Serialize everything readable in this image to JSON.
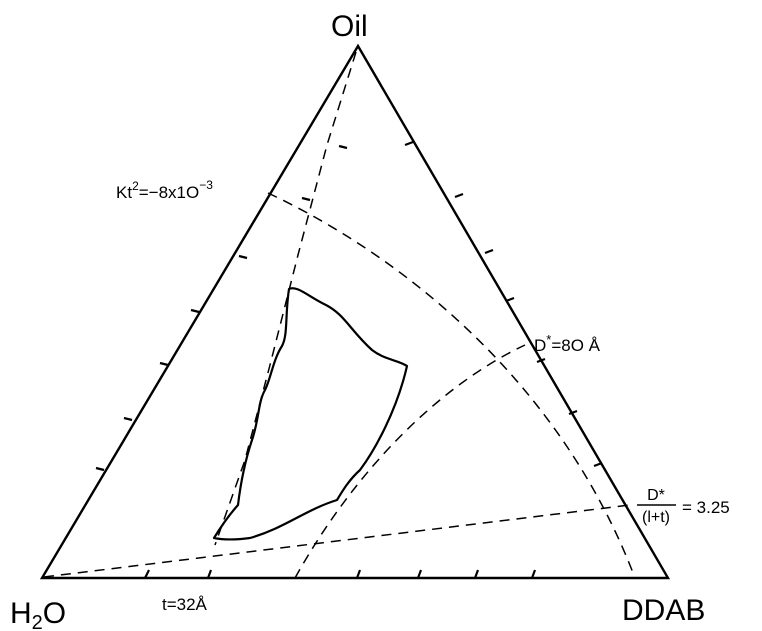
{
  "vertices": {
    "top": "Oil",
    "bottom_left_main": "H",
    "bottom_left_sub": "2",
    "bottom_left_end": "O",
    "bottom_right": "DDAB"
  },
  "annotations": {
    "kt2_main": "Kt",
    "kt2_sup": "2",
    "kt2_eq": "=−8x1O",
    "kt2_exp": "−3",
    "dstar_80_main": "D",
    "dstar_80_star": "*",
    "dstar_80_eq": "=8O Å",
    "t32": "t=32Å",
    "ratio_num": "D*",
    "ratio_den": "(l+t)",
    "ratio_eq": "= 3.25"
  },
  "colors": {
    "ink": "#000000",
    "background": "#ffffff"
  }
}
